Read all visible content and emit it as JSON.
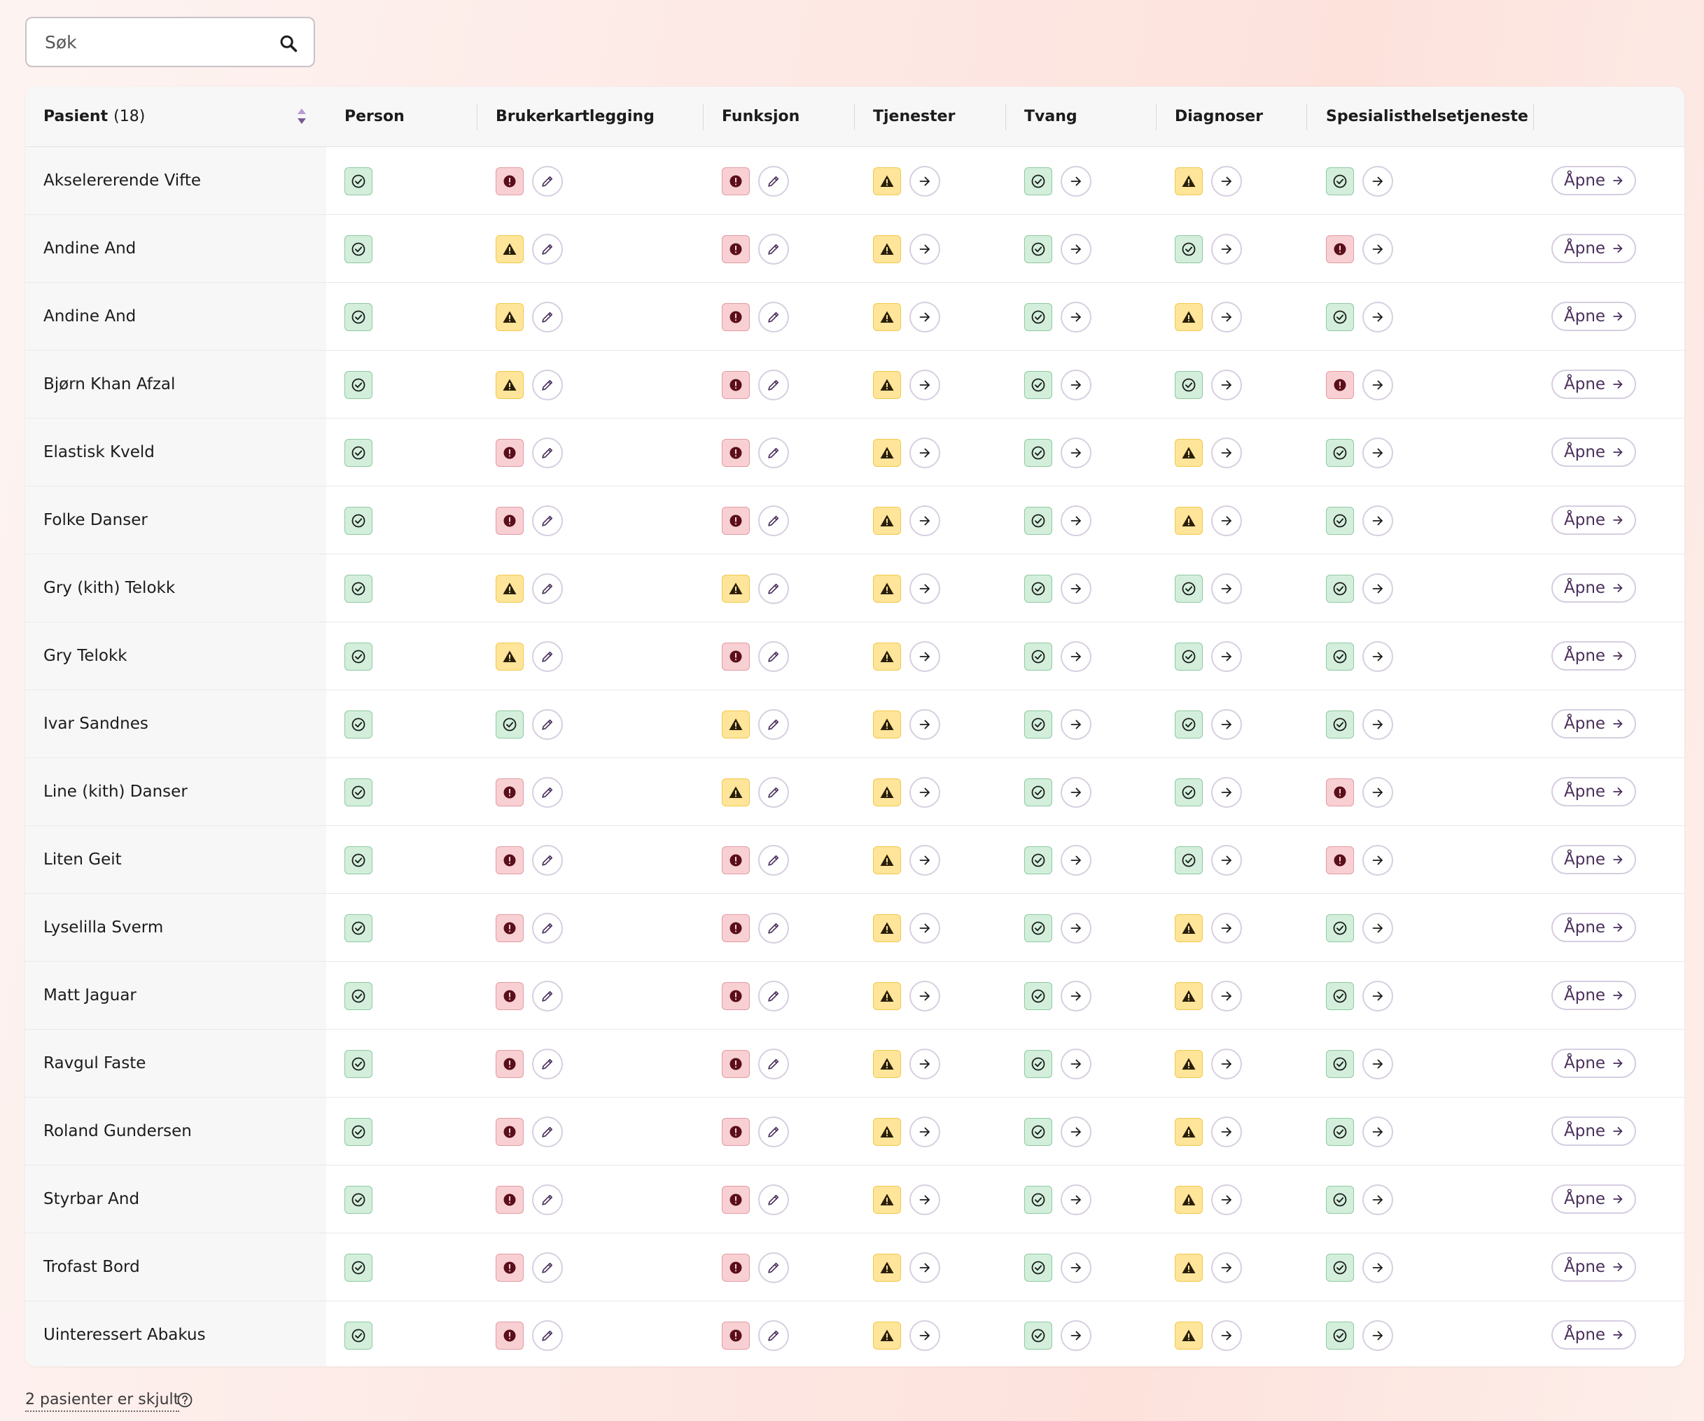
{
  "search": {
    "placeholder": "Søk",
    "icon": "search-icon"
  },
  "table": {
    "headers": {
      "patient": "Pasient",
      "patient_count": "(18)",
      "person": "Person",
      "brukerkartlegging": "Brukerkartlegging",
      "funksjon": "Funksjon",
      "tjenester": "Tjenester",
      "tvang": "Tvang",
      "diagnoser": "Diagnoser",
      "spesialist": "Spesialisthelsetjeneste"
    },
    "open_label": "Åpne",
    "rows": [
      {
        "name": "Akselererende Vifte",
        "person": "ok",
        "bruker": "err",
        "funksjon": "err",
        "tjenester": "warn",
        "tvang": "ok",
        "diagnoser": "warn",
        "spesialist": "ok"
      },
      {
        "name": "Andine And",
        "person": "ok",
        "bruker": "warn",
        "funksjon": "err",
        "tjenester": "warn",
        "tvang": "ok",
        "diagnoser": "ok",
        "spesialist": "err"
      },
      {
        "name": "Andine And",
        "person": "ok",
        "bruker": "warn",
        "funksjon": "err",
        "tjenester": "warn",
        "tvang": "ok",
        "diagnoser": "warn",
        "spesialist": "ok"
      },
      {
        "name": "Bjørn Khan Afzal",
        "person": "ok",
        "bruker": "warn",
        "funksjon": "err",
        "tjenester": "warn",
        "tvang": "ok",
        "diagnoser": "ok",
        "spesialist": "err"
      },
      {
        "name": "Elastisk Kveld",
        "person": "ok",
        "bruker": "err",
        "funksjon": "err",
        "tjenester": "warn",
        "tvang": "ok",
        "diagnoser": "warn",
        "spesialist": "ok"
      },
      {
        "name": "Folke Danser",
        "person": "ok",
        "bruker": "err",
        "funksjon": "err",
        "tjenester": "warn",
        "tvang": "ok",
        "diagnoser": "warn",
        "spesialist": "ok"
      },
      {
        "name": "Gry (kith) Telokk",
        "person": "ok",
        "bruker": "warn",
        "funksjon": "warn",
        "tjenester": "warn",
        "tvang": "ok",
        "diagnoser": "ok",
        "spesialist": "ok"
      },
      {
        "name": "Gry Telokk",
        "person": "ok",
        "bruker": "warn",
        "funksjon": "err",
        "tjenester": "warn",
        "tvang": "ok",
        "diagnoser": "ok",
        "spesialist": "ok"
      },
      {
        "name": "Ivar Sandnes",
        "person": "ok",
        "bruker": "ok",
        "funksjon": "warn",
        "tjenester": "warn",
        "tvang": "ok",
        "diagnoser": "ok",
        "spesialist": "ok"
      },
      {
        "name": "Line (kith) Danser",
        "person": "ok",
        "bruker": "err",
        "funksjon": "warn",
        "tjenester": "warn",
        "tvang": "ok",
        "diagnoser": "ok",
        "spesialist": "err"
      },
      {
        "name": "Liten Geit",
        "person": "ok",
        "bruker": "err",
        "funksjon": "err",
        "tjenester": "warn",
        "tvang": "ok",
        "diagnoser": "ok",
        "spesialist": "err"
      },
      {
        "name": "Lyselilla Sverm",
        "person": "ok",
        "bruker": "err",
        "funksjon": "err",
        "tjenester": "warn",
        "tvang": "ok",
        "diagnoser": "warn",
        "spesialist": "ok"
      },
      {
        "name": "Matt Jaguar",
        "person": "ok",
        "bruker": "err",
        "funksjon": "err",
        "tjenester": "warn",
        "tvang": "ok",
        "diagnoser": "warn",
        "spesialist": "ok"
      },
      {
        "name": "Ravgul Faste",
        "person": "ok",
        "bruker": "err",
        "funksjon": "err",
        "tjenester": "warn",
        "tvang": "ok",
        "diagnoser": "warn",
        "spesialist": "ok"
      },
      {
        "name": "Roland Gundersen",
        "person": "ok",
        "bruker": "err",
        "funksjon": "err",
        "tjenester": "warn",
        "tvang": "ok",
        "diagnoser": "warn",
        "spesialist": "ok"
      },
      {
        "name": "Styrbar And",
        "person": "ok",
        "bruker": "err",
        "funksjon": "err",
        "tjenester": "warn",
        "tvang": "ok",
        "diagnoser": "warn",
        "spesialist": "ok"
      },
      {
        "name": "Trofast Bord",
        "person": "ok",
        "bruker": "err",
        "funksjon": "err",
        "tjenester": "warn",
        "tvang": "ok",
        "diagnoser": "warn",
        "spesialist": "ok"
      },
      {
        "name": "Uinteressert Abakus",
        "person": "ok",
        "bruker": "err",
        "funksjon": "err",
        "tjenester": "warn",
        "tvang": "ok",
        "diagnoser": "warn",
        "spesialist": "ok"
      }
    ]
  },
  "footer": {
    "hidden_text": "2 pasienter er skjult",
    "icon": "help-icon"
  },
  "colors": {
    "ok": "#d3efdc",
    "warn": "#ffe59a",
    "err": "#f8d0d4",
    "accent": "#4a2f5c"
  }
}
